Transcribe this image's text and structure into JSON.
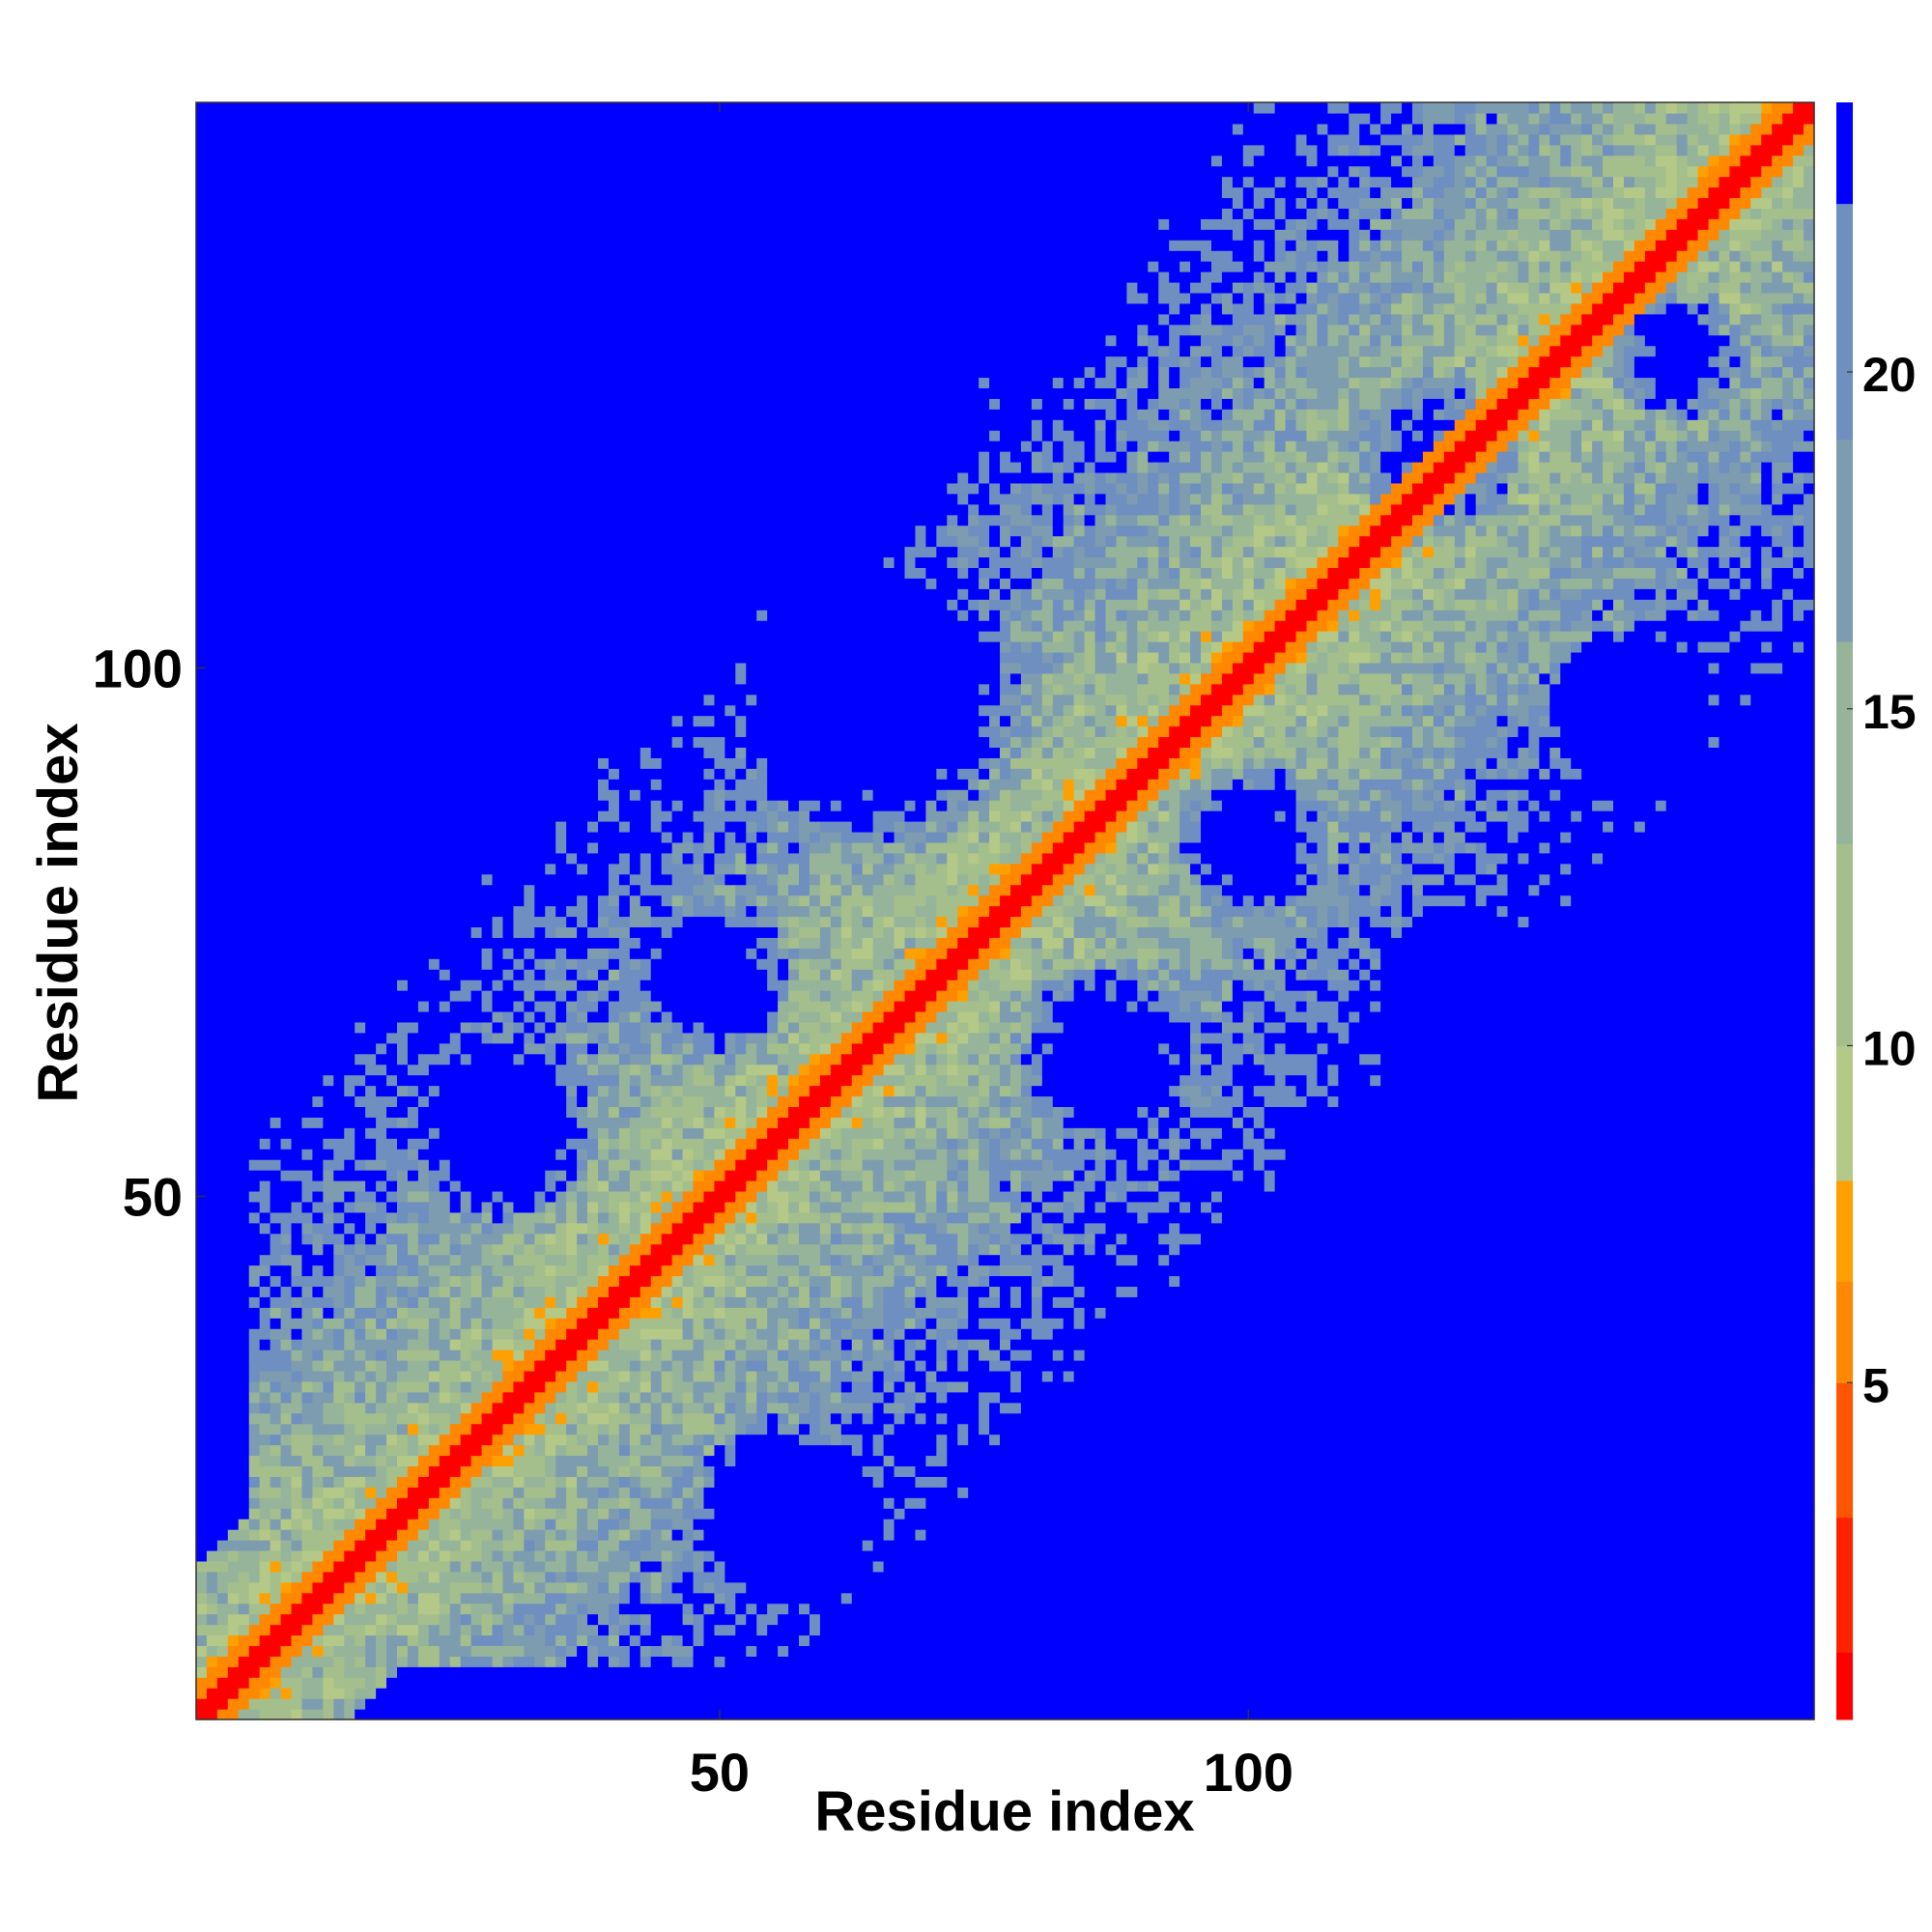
{
  "chart_data": {
    "type": "heatmap",
    "title": "",
    "xlabel": "Residue index",
    "ylabel": "Residue index",
    "n_residues": 153,
    "xlim": [
      1,
      153
    ],
    "ylim": [
      1,
      153
    ],
    "x_ticks": [
      50,
      100
    ],
    "x_tick_labels": [
      "50",
      "100"
    ],
    "y_ticks": [
      50,
      100
    ],
    "y_tick_labels": [
      "50",
      "100"
    ],
    "colorbar": {
      "range": [
        0,
        24
      ],
      "ticks": [
        5,
        10,
        15,
        20
      ],
      "tick_labels": [
        "5",
        "10",
        "15",
        "20"
      ],
      "bands": [
        {
          "from": 0,
          "to": 1,
          "color": "#ff0000"
        },
        {
          "from": 1,
          "to": 3,
          "color": "#ff2200"
        },
        {
          "from": 3,
          "to": 5,
          "color": "#ff5500"
        },
        {
          "from": 5,
          "to": 6.5,
          "color": "#ff8800"
        },
        {
          "from": 6.5,
          "to": 8,
          "color": "#ffa000"
        },
        {
          "from": 8,
          "to": 10,
          "color": "#b4c987"
        },
        {
          "from": 10,
          "to": 13,
          "color": "#a4bf8c"
        },
        {
          "from": 13,
          "to": 16,
          "color": "#96b49a"
        },
        {
          "from": 16,
          "to": 19,
          "color": "#7e9cb0"
        },
        {
          "from": 19,
          "to": 22.5,
          "color": "#6e8fbf"
        },
        {
          "from": 22.5,
          "to": 24,
          "color": "#0000ff"
        }
      ]
    },
    "colors": {
      "far": "#0000ff",
      "diagonal": "#ff0000",
      "contact": "#ff8800"
    }
  }
}
